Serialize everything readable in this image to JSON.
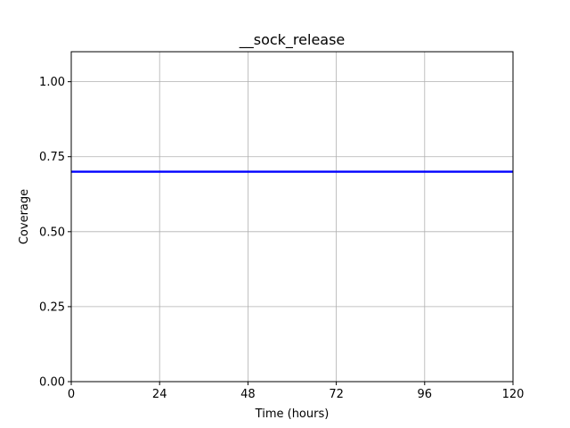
{
  "chart_data": {
    "type": "line",
    "title": "__sock_release",
    "xlabel": "Time (hours)",
    "ylabel": "Coverage",
    "xlim": [
      0,
      120
    ],
    "ylim": [
      0,
      1.1
    ],
    "xticks": [
      0,
      24,
      48,
      72,
      96,
      120
    ],
    "xtick_labels": [
      "0",
      "24",
      "48",
      "72",
      "96",
      "120"
    ],
    "yticks": [
      0,
      0.25,
      0.5,
      0.75,
      1.0
    ],
    "ytick_labels": [
      "0.00",
      "0.25",
      "0.50",
      "0.75",
      "1.00"
    ],
    "grid": true,
    "legend": "none",
    "series": [
      {
        "color": "#0000ff",
        "x": [
          0,
          120
        ],
        "y": [
          0.7,
          0.7
        ]
      }
    ]
  }
}
